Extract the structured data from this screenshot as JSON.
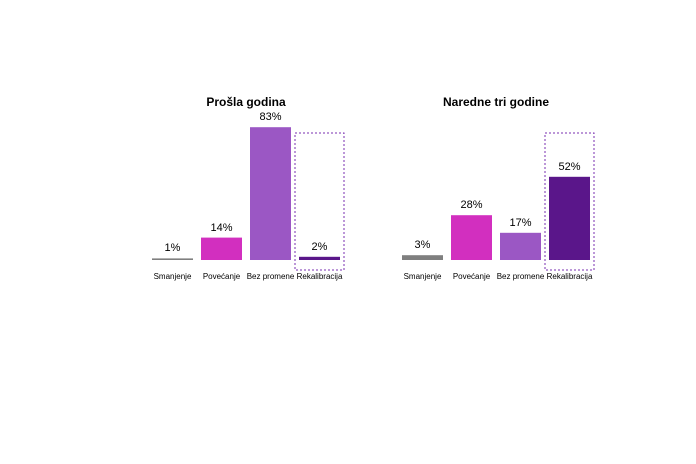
{
  "chart_data": [
    {
      "type": "bar",
      "title": "Prošla godina",
      "categories": [
        "Smanjenje",
        "Povećanje",
        "Bez promene",
        "Rekalibracija"
      ],
      "values": [
        1,
        14,
        83,
        2
      ],
      "value_labels": [
        "1%",
        "14%",
        "83%",
        "2%"
      ],
      "colors": [
        "#7f7f7f",
        "#d22fbf",
        "#9b57c4",
        "#5a168a"
      ]
    },
    {
      "type": "bar",
      "title": "Naredne tri godine",
      "categories": [
        "Smanjenje",
        "Povećanje",
        "Bez promene",
        "Rekalibracija"
      ],
      "values": [
        3,
        28,
        17,
        52
      ],
      "value_labels": [
        "3%",
        "28%",
        "17%",
        "52%"
      ],
      "colors": [
        "#7f7f7f",
        "#d22fbf",
        "#9b57c4",
        "#5a168a"
      ]
    }
  ]
}
